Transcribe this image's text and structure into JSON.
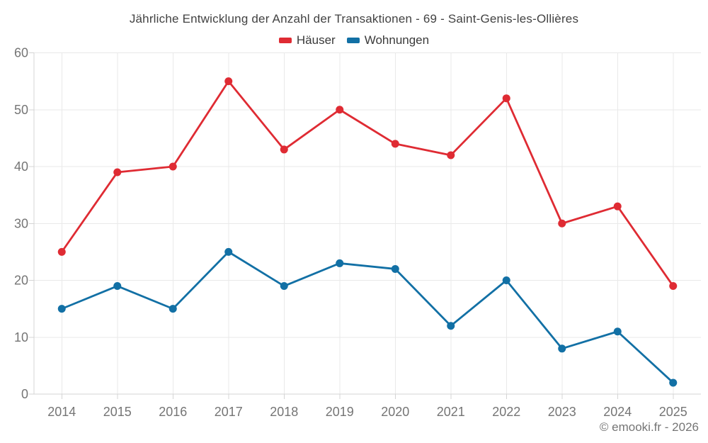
{
  "title": "Jährliche Entwicklung der Anzahl der Transaktionen - 69 - Saint-Genis-les-Ollières",
  "footer": "© emooki.fr - 2026",
  "legend": {
    "items": [
      {
        "label": "Häuser",
        "color": "#df2b33"
      },
      {
        "label": "Wohnungen",
        "color": "#1270a5"
      }
    ]
  },
  "colors": {
    "background": "#ffffff",
    "grid": "#e9e9e9",
    "axis": "#d4d4d4",
    "tick_label": "#757575",
    "title_text": "#424242",
    "series_hauser": "#df2b33",
    "series_wohnungen": "#1270a5"
  },
  "chart_data": {
    "type": "line",
    "title": "Jährliche Entwicklung der Anzahl der Transaktionen - 69 - Saint-Genis-les-Ollières",
    "categories": [
      "2014",
      "2015",
      "2016",
      "2017",
      "2018",
      "2019",
      "2020",
      "2021",
      "2022",
      "2023",
      "2024",
      "2025"
    ],
    "series": [
      {
        "name": "Häuser",
        "color": "#df2b33",
        "values": [
          25,
          39,
          40,
          55,
          43,
          50,
          44,
          42,
          52,
          30,
          33,
          19
        ]
      },
      {
        "name": "Wohnungen",
        "color": "#1270a5",
        "values": [
          15,
          19,
          15,
          25,
          19,
          23,
          22,
          12,
          20,
          8,
          11,
          2
        ]
      }
    ],
    "xlabel": "",
    "ylabel": "",
    "ylim": [
      0,
      60
    ],
    "yticks": [
      0,
      10,
      20,
      30,
      40,
      50,
      60
    ],
    "grid": true,
    "legend_position": "top",
    "marker": "circle"
  }
}
